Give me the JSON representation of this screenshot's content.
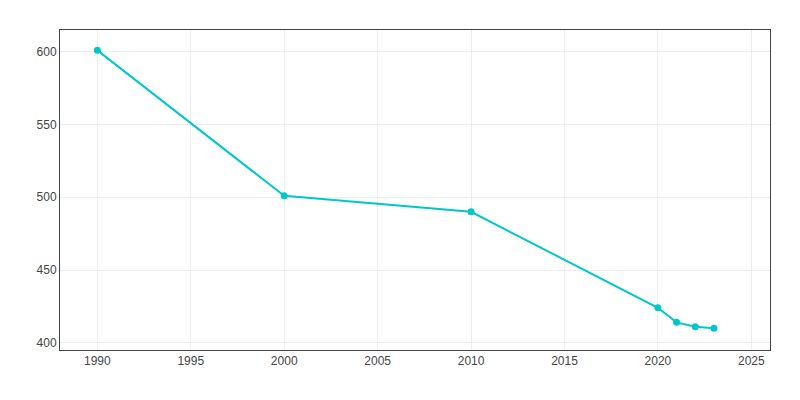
{
  "chart_data": {
    "type": "line",
    "x": [
      1990,
      2000,
      2010,
      2020,
      2021,
      2022,
      2023
    ],
    "values": [
      601,
      501,
      490,
      424,
      414,
      411,
      410
    ],
    "color": "#00c8c8",
    "marker": "circle",
    "xlim": [
      1988,
      2026
    ],
    "ylim": [
      395,
      615
    ],
    "xticks": [
      1990,
      1995,
      2000,
      2005,
      2010,
      2015,
      2020,
      2025
    ],
    "yticks": [
      400,
      450,
      500,
      550,
      600
    ],
    "grid": true
  }
}
